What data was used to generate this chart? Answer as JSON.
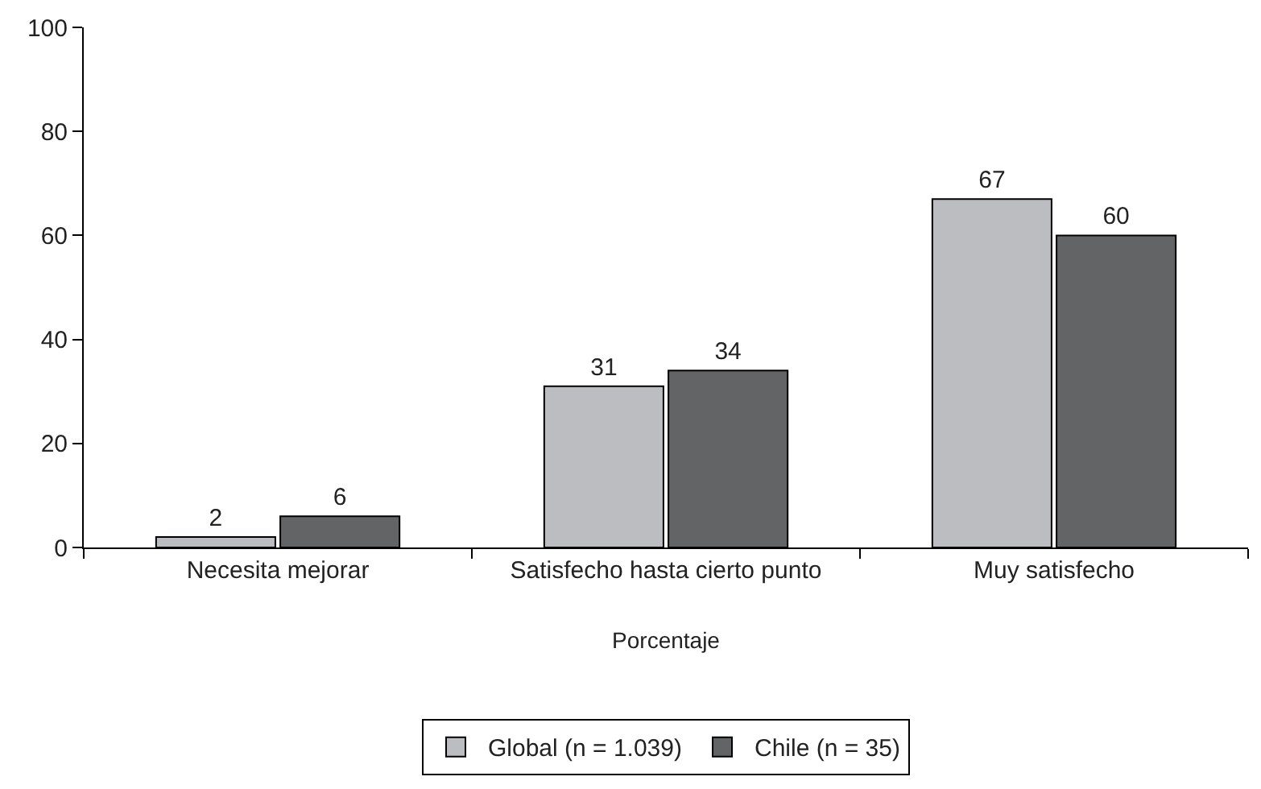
{
  "chart_data": {
    "type": "bar",
    "xlabel": "Porcentaje",
    "categories": [
      "Necesita mejorar",
      "Satisfecho hasta cierto punto",
      "Muy satisfecho"
    ],
    "series": [
      {
        "name": "Global (n = 1.039)",
        "color": "#bcbdc0",
        "values": [
          2,
          31,
          67
        ]
      },
      {
        "name": "Chile (n = 35)",
        "color": "#636466",
        "values": [
          6,
          34,
          60
        ]
      }
    ],
    "ylim": [
      0,
      100
    ],
    "yticks": [
      0,
      20,
      40,
      60,
      80,
      100
    ],
    "legend": "bottom",
    "data_labels": true
  }
}
